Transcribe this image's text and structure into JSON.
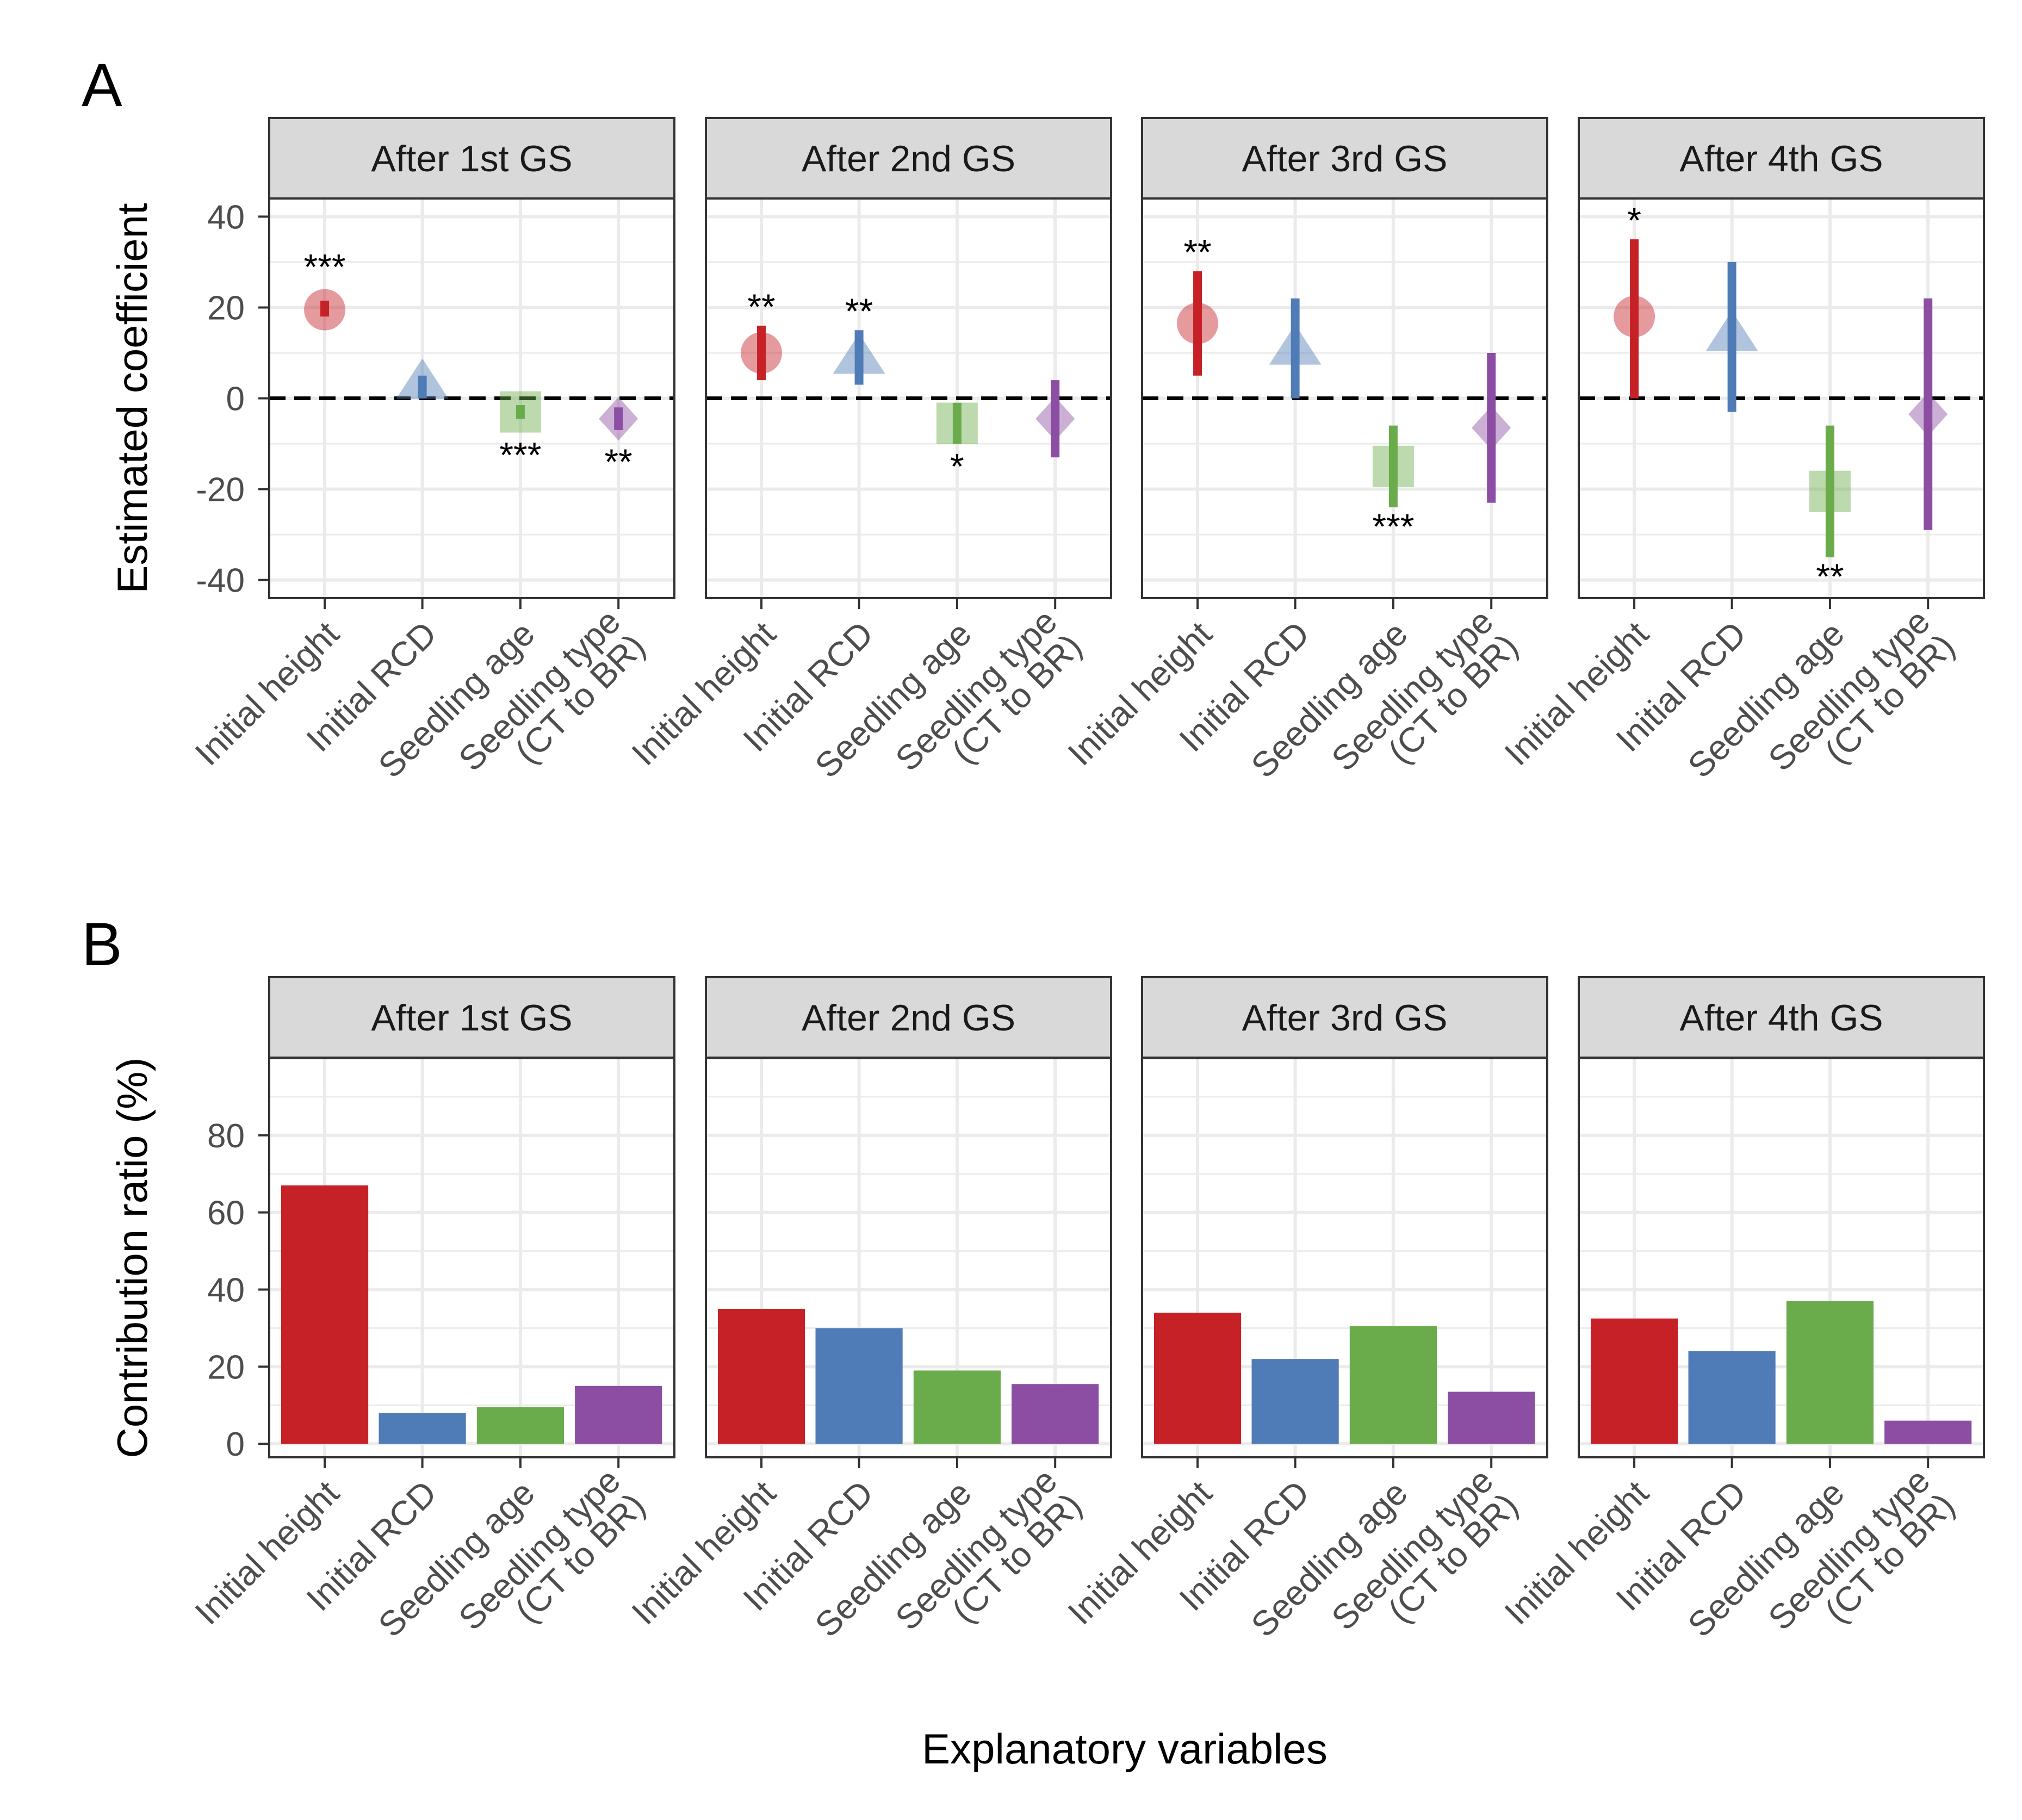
{
  "figure": {
    "xlabel": "Explanatory variables",
    "variables": [
      "Initial height",
      "Initial RCD",
      "Seedling age",
      "Seedling type\n(CT to BR)"
    ],
    "colors": {
      "Initial height": "#c62127",
      "Initial RCD": "#4f7cb6",
      "Seedling age": "#6aac4b",
      "Seedling type\n(CT to BR)": "#8b4ea2"
    },
    "strip_fill": "#d9d9d9",
    "grid_color": "#ebebeb",
    "point_alpha": 0.45
  },
  "chart_data": [
    {
      "panel_label": "A",
      "type": "scatter",
      "title": "",
      "xlabel": "",
      "ylabel": "Estimated coefficient",
      "ylim": [
        -44,
        44
      ],
      "yticks": [
        40,
        20,
        0,
        -20,
        -40
      ],
      "reference_line": 0,
      "facets": [
        {
          "label": "After 1st GS",
          "points": [
            {
              "var": "Initial height",
              "shape": "circle",
              "estimate": 19.5,
              "ci": [
                18,
                21.5
              ],
              "sig": "***",
              "sig_pos": "above"
            },
            {
              "var": "Initial RCD",
              "shape": "triangle",
              "estimate": 3.5,
              "ci": [
                0,
                5
              ],
              "sig": "",
              "sig_pos": "above"
            },
            {
              "var": "Seedling age",
              "shape": "square",
              "estimate": -3,
              "ci": [
                -4.5,
                -1.5
              ],
              "sig": "***",
              "sig_pos": "below"
            },
            {
              "var": "Seedling type\n(CT to BR)",
              "shape": "diamond",
              "estimate": -4.5,
              "ci": [
                -7,
                -2
              ],
              "sig": "**",
              "sig_pos": "below"
            }
          ]
        },
        {
          "label": "After 2nd GS",
          "points": [
            {
              "var": "Initial height",
              "shape": "circle",
              "estimate": 10,
              "ci": [
                4,
                16
              ],
              "sig": "**",
              "sig_pos": "above"
            },
            {
              "var": "Initial RCD",
              "shape": "triangle",
              "estimate": 9,
              "ci": [
                3,
                15
              ],
              "sig": "**",
              "sig_pos": "above"
            },
            {
              "var": "Seedling age",
              "shape": "square",
              "estimate": -5.5,
              "ci": [
                -10,
                -1
              ],
              "sig": "*",
              "sig_pos": "below"
            },
            {
              "var": "Seedling type\n(CT to BR)",
              "shape": "diamond",
              "estimate": -4.5,
              "ci": [
                -13,
                4
              ],
              "sig": "",
              "sig_pos": "below"
            }
          ]
        },
        {
          "label": "After 3rd GS",
          "points": [
            {
              "var": "Initial height",
              "shape": "circle",
              "estimate": 16.5,
              "ci": [
                5,
                28
              ],
              "sig": "**",
              "sig_pos": "above"
            },
            {
              "var": "Initial RCD",
              "shape": "triangle",
              "estimate": 11,
              "ci": [
                0,
                22
              ],
              "sig": "",
              "sig_pos": "above"
            },
            {
              "var": "Seedling age",
              "shape": "square",
              "estimate": -15,
              "ci": [
                -24,
                -6
              ],
              "sig": "***",
              "sig_pos": "below"
            },
            {
              "var": "Seedling type\n(CT to BR)",
              "shape": "diamond",
              "estimate": -6.5,
              "ci": [
                -23,
                10
              ],
              "sig": "",
              "sig_pos": "below"
            }
          ]
        },
        {
          "label": "After 4th GS",
          "points": [
            {
              "var": "Initial height",
              "shape": "circle",
              "estimate": 18,
              "ci": [
                0,
                35
              ],
              "sig": "*",
              "sig_pos": "above"
            },
            {
              "var": "Initial RCD",
              "shape": "triangle",
              "estimate": 14,
              "ci": [
                -3,
                30
              ],
              "sig": "",
              "sig_pos": "above"
            },
            {
              "var": "Seedling age",
              "shape": "square",
              "estimate": -20.5,
              "ci": [
                -35,
                -6
              ],
              "sig": "**",
              "sig_pos": "below"
            },
            {
              "var": "Seedling type\n(CT to BR)",
              "shape": "diamond",
              "estimate": -3.5,
              "ci": [
                -29,
                22
              ],
              "sig": "",
              "sig_pos": "below"
            }
          ]
        }
      ]
    },
    {
      "panel_label": "B",
      "type": "bar",
      "title": "",
      "xlabel": "",
      "ylabel": "Contribution ratio (%)",
      "ylim": [
        -3.5,
        100
      ],
      "yticks": [
        80,
        60,
        40,
        20,
        0
      ],
      "facets": [
        {
          "label": "After 1st GS",
          "values": [
            67,
            8,
            9.5,
            15
          ]
        },
        {
          "label": "After 2nd GS",
          "values": [
            35,
            30,
            19,
            15.5
          ]
        },
        {
          "label": "After 3rd GS",
          "values": [
            34,
            22,
            30.5,
            13.5
          ]
        },
        {
          "label": "After 4th GS",
          "values": [
            32.5,
            24,
            37,
            6
          ]
        }
      ]
    }
  ]
}
